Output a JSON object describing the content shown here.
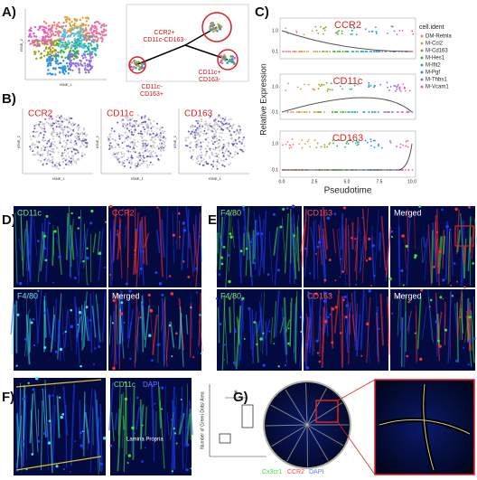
{
  "panel_a": {
    "label": "A)",
    "tsne_axes": [
      "tSNE_1",
      "tSNE_2"
    ],
    "trajectory_labels": [
      [
        "CCR2+",
        "CD11c-CD163-"
      ],
      [
        "CD11c+",
        "CD163-"
      ],
      [
        "CD11c-",
        "CD163+"
      ]
    ]
  },
  "panel_b": {
    "label": "B)",
    "plots": [
      "CCR2",
      "CD11c",
      "CD163"
    ],
    "axes": [
      "tSNE_1",
      "tSNE_2"
    ]
  },
  "panel_c": {
    "label": "C)",
    "plots": [
      "CCR2",
      "CD11c",
      "CD163"
    ],
    "y_label": "Relative Expression",
    "x_label": "Pseudotime",
    "x_ticks": [
      "0.0",
      "2.5",
      "5.0",
      "7.5",
      "10.0"
    ],
    "y_ticks": [
      "0.1",
      "1.0"
    ],
    "legend": {
      "title": "cell.ident",
      "items": [
        {
          "name": "DM-Retnla",
          "color": "#f08080"
        },
        {
          "name": "M-Ccl2",
          "color": "#e0a030"
        },
        {
          "name": "M-Cd163",
          "color": "#a0a020"
        },
        {
          "name": "M-Hes1",
          "color": "#40b040"
        },
        {
          "name": "M-Ifit2",
          "color": "#20b0a0"
        },
        {
          "name": "M-Pgf",
          "color": "#3090e0"
        },
        {
          "name": "M-Thbs1",
          "color": "#9070e0"
        },
        {
          "name": "M-Vcam1",
          "color": "#e060c0"
        }
      ]
    }
  },
  "panel_d": {
    "label": "D)",
    "images": [
      {
        "text": "CD11c",
        "color": "#7fe07f"
      },
      {
        "text": "CCR2",
        "color": "#ff4040"
      },
      {
        "text": "F4/80",
        "color": "#7fe0e0"
      },
      {
        "text": "Merged",
        "color": "#ffffff"
      }
    ]
  },
  "panel_e": {
    "label": "E)",
    "images": [
      {
        "text": "F4/80",
        "color": "#7fe07f"
      },
      {
        "text": "CD163",
        "color": "#ff5050"
      },
      {
        "text": "Merged",
        "color": "#ffffff"
      },
      {
        "text": "F4/80",
        "color": "#7fe07f"
      },
      {
        "text": "CD163",
        "color": "#ff5050"
      },
      {
        "text": "Merged",
        "color": "#ffffff"
      }
    ]
  },
  "panel_f": {
    "label": "F)",
    "stain": [
      "CD11c",
      "DAPI"
    ],
    "region": "Lamina Propria",
    "plot_y_label": "Number of Green Dots/ Area",
    "significance": "*"
  },
  "panel_g": {
    "label": "G)",
    "stain": [
      "Cx3cr1",
      "CCR2",
      "DAPI"
    ]
  }
}
